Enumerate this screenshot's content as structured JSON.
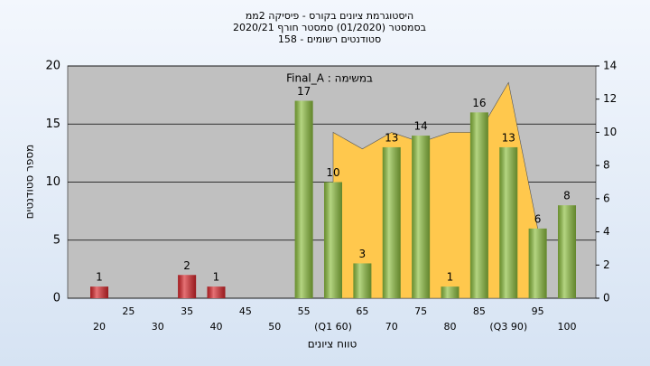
{
  "chart_data": {
    "type": "bar",
    "title": [
      "היסטוגרמת ציונים בקורס - פיסיקה 2ממ",
      "בסמסטר  (01/2020)  סמסטר חורף  2020/21",
      "סטודנטים רשומים - 158"
    ],
    "annotation": "Final_A : במשימה",
    "y_label": "מספר סטודנטים",
    "x_label": "טווח ציונים",
    "categories": [
      "20",
      "25",
      "30",
      "35",
      "40",
      "45",
      "50",
      "55",
      "(Q1 60)",
      "65",
      "70",
      "75",
      "80",
      "85",
      "(Q3 90)",
      "95",
      "100"
    ],
    "series": [
      {
        "type": "bar",
        "values": [
          1,
          null,
          null,
          2,
          1,
          null,
          null,
          17,
          10,
          3,
          13,
          14,
          1,
          16,
          13,
          6,
          8
        ],
        "colors": [
          "#d9262b",
          null,
          null,
          "#d9262b",
          "#d9262b",
          null,
          null,
          "#8dbf3f",
          "#8dbf3f",
          "#8dbf3f",
          "#8dbf3f",
          "#8dbf3f",
          "#8dbf3f",
          "#8dbf3f",
          "#8dbf3f",
          "#8dbf3f",
          "#8dbf3f"
        ]
      },
      {
        "type": "area",
        "axis": "y2",
        "color": "#ffc84d",
        "values": [
          null,
          null,
          null,
          null,
          null,
          null,
          null,
          null,
          10,
          9,
          10,
          9.4,
          10,
          10,
          13,
          4.2,
          null
        ]
      }
    ],
    "ylim": [
      0,
      20
    ],
    "yticks": [
      0,
      5,
      10,
      15,
      20
    ],
    "y2lim": [
      0,
      14
    ],
    "y2ticks": [
      0,
      2,
      4,
      6,
      8,
      10,
      12,
      14
    ],
    "grid": true
  }
}
